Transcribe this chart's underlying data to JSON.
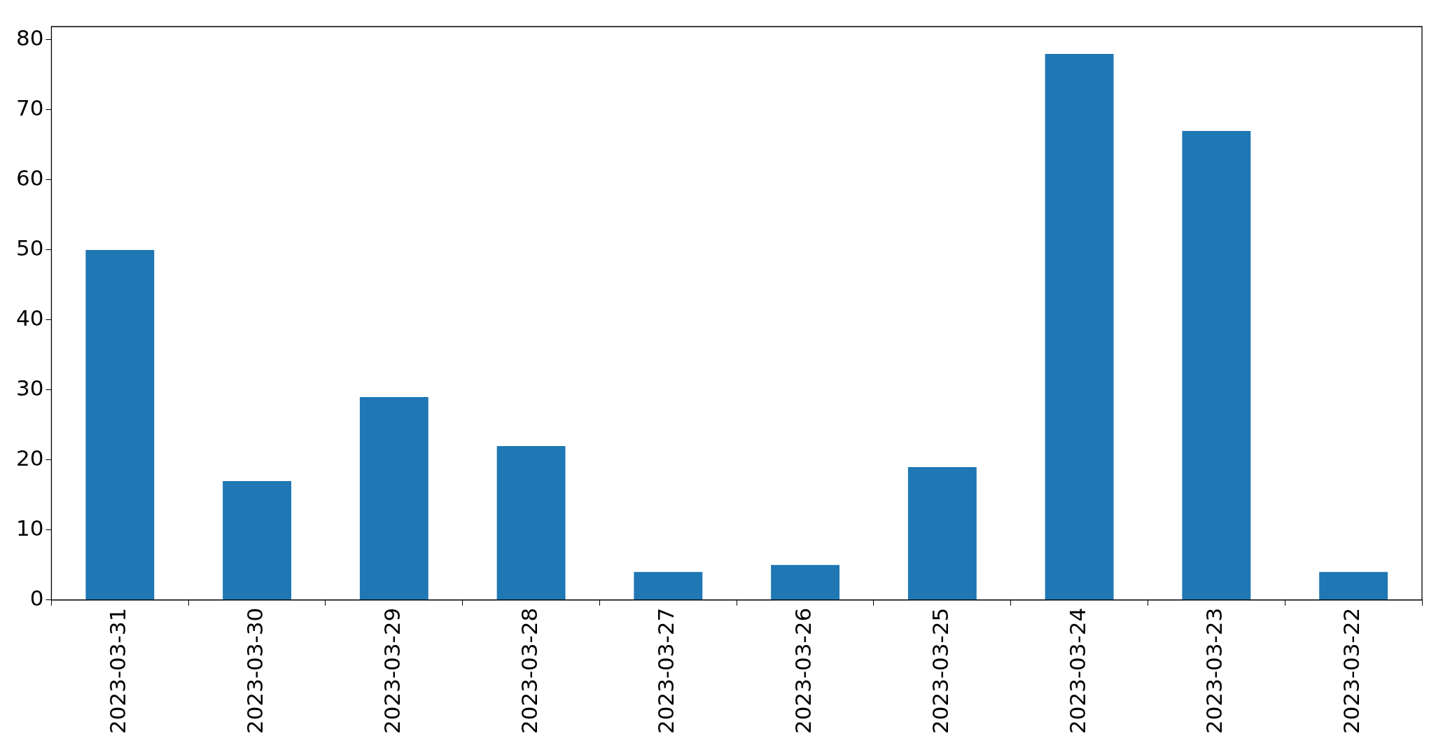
{
  "chart_data": {
    "type": "bar",
    "categories": [
      "2023-03-31",
      "2023-03-30",
      "2023-03-29",
      "2023-03-28",
      "2023-03-27",
      "2023-03-26",
      "2023-03-25",
      "2023-03-24",
      "2023-03-23",
      "2023-03-22"
    ],
    "values": [
      50,
      17,
      29,
      22,
      4,
      5,
      19,
      78,
      67,
      4
    ],
    "color": "#1f77b4",
    "ylim": [
      0,
      81.9
    ],
    "yticks": [
      0,
      10,
      20,
      30,
      40,
      50,
      60,
      70,
      80
    ],
    "grid": false,
    "legend": false
  }
}
